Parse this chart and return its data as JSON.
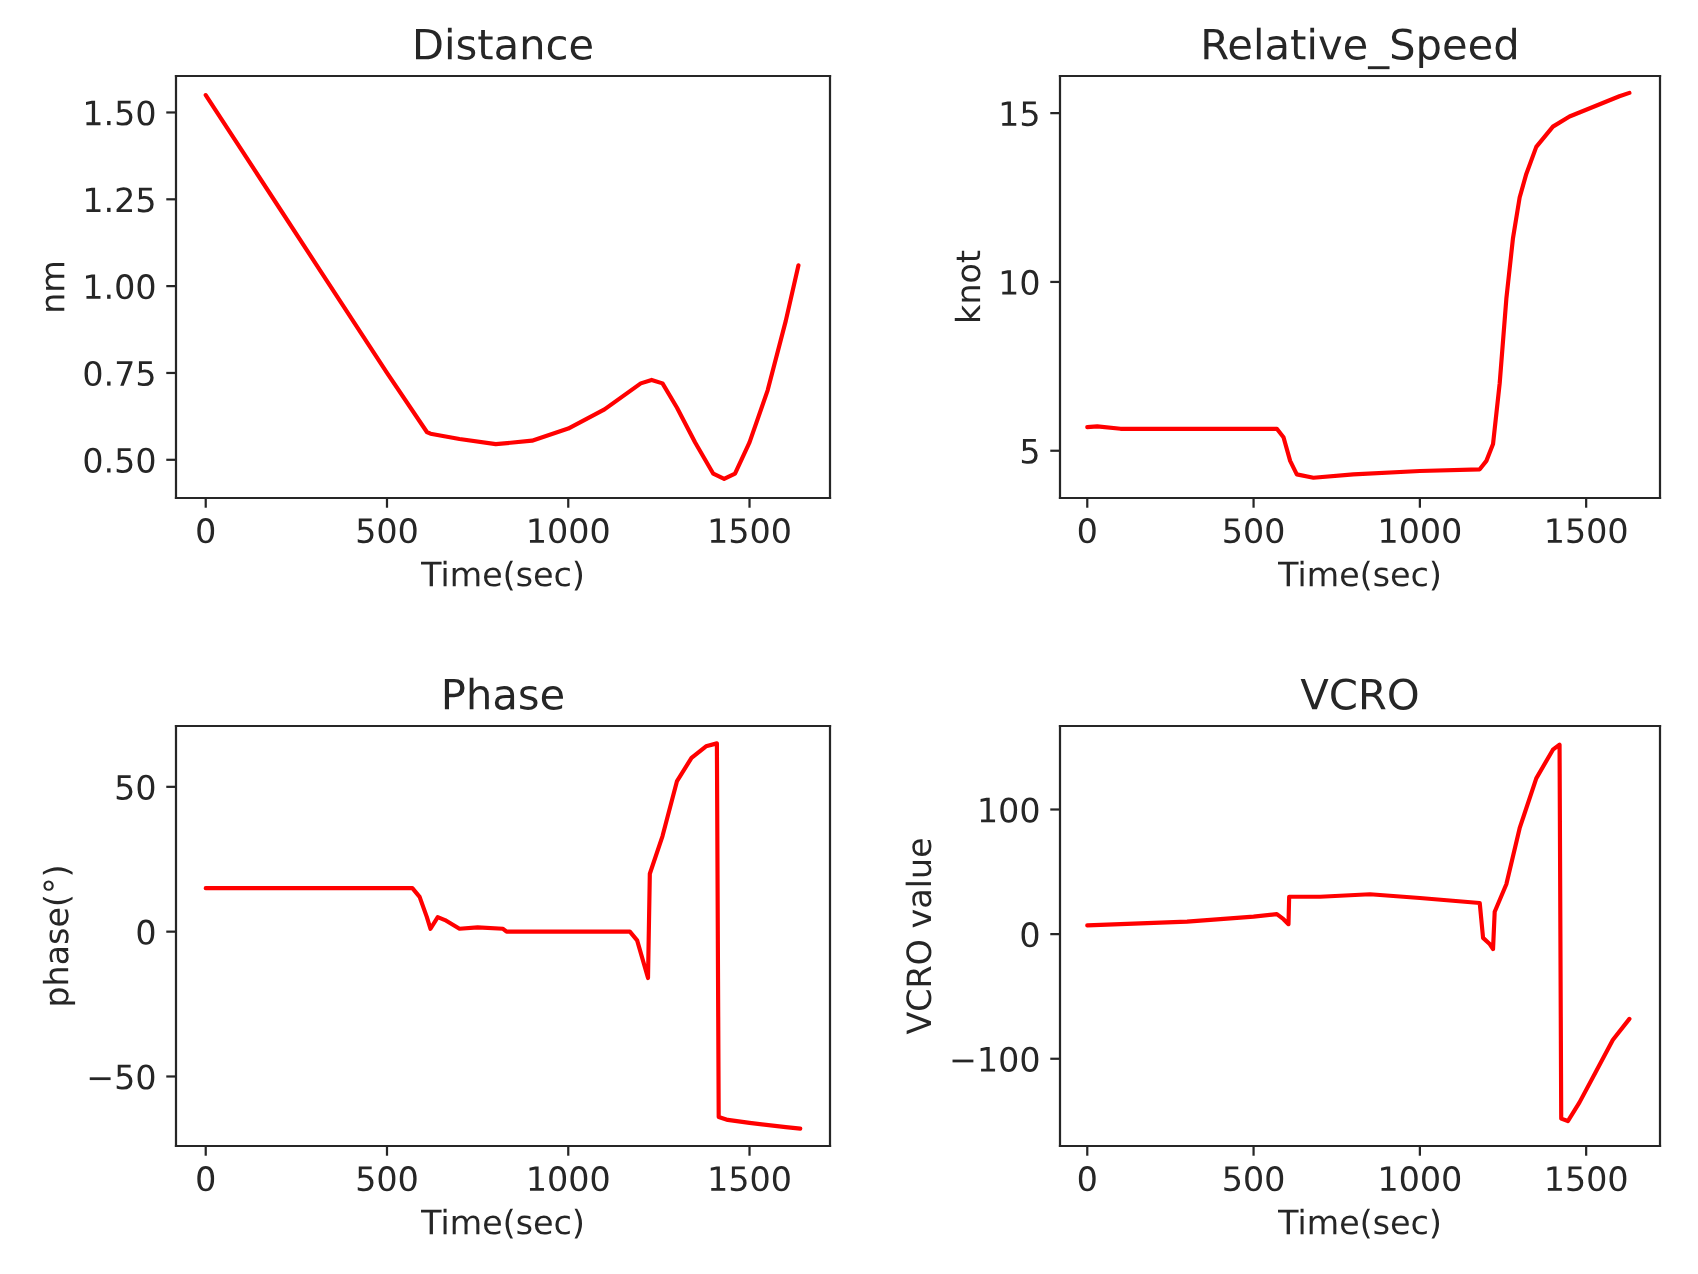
{
  "chart_data": [
    {
      "type": "line",
      "title": "Distance",
      "xlabel": "Time(sec)",
      "ylabel": "nm",
      "xlim": [
        -82,
        1722
      ],
      "xticks": [
        0,
        500,
        1000,
        1500
      ],
      "ylim": [
        0.39,
        1.605
      ],
      "yticks": [
        {
          "value": 0.5,
          "label": "0.50"
        },
        {
          "value": 0.75,
          "label": "0.75"
        },
        {
          "value": 1.0,
          "label": "1.00"
        },
        {
          "value": 1.25,
          "label": "1.25"
        },
        {
          "value": 1.5,
          "label": "1.50"
        }
      ],
      "grid": false,
      "legend": false,
      "series": [
        {
          "color": "#ff0000",
          "x": [
            0,
            100,
            200,
            300,
            400,
            500,
            610,
            620,
            700,
            800,
            900,
            1000,
            1100,
            1200,
            1230,
            1260,
            1300,
            1350,
            1400,
            1430,
            1460,
            1500,
            1550,
            1600,
            1635
          ],
          "values": [
            1.55,
            1.39,
            1.23,
            1.07,
            0.91,
            0.75,
            0.58,
            0.575,
            0.56,
            0.545,
            0.555,
            0.59,
            0.645,
            0.72,
            0.73,
            0.72,
            0.65,
            0.55,
            0.46,
            0.445,
            0.46,
            0.55,
            0.7,
            0.9,
            1.06
          ]
        }
      ]
    },
    {
      "type": "line",
      "title": "Relative_Speed",
      "xlabel": "Time(sec)",
      "ylabel": "knot",
      "xlim": [
        -82,
        1722
      ],
      "xticks": [
        0,
        500,
        1000,
        1500
      ],
      "ylim": [
        3.6,
        16.1
      ],
      "yticks": [
        5,
        10,
        15
      ],
      "grid": false,
      "legend": false,
      "series": [
        {
          "color": "#ff0000",
          "x": [
            0,
            30,
            100,
            570,
            590,
            610,
            630,
            680,
            800,
            1000,
            1180,
            1200,
            1220,
            1240,
            1260,
            1280,
            1300,
            1320,
            1350,
            1400,
            1450,
            1500,
            1550,
            1600,
            1630
          ],
          "values": [
            5.7,
            5.72,
            5.65,
            5.65,
            5.4,
            4.7,
            4.3,
            4.2,
            4.3,
            4.4,
            4.45,
            4.7,
            5.2,
            7,
            9.5,
            11.3,
            12.5,
            13.2,
            14,
            14.6,
            14.9,
            15.1,
            15.3,
            15.5,
            15.6
          ]
        }
      ]
    },
    {
      "type": "line",
      "title": "Phase",
      "xlabel": "Time(sec)",
      "ylabel": "phase(°)",
      "xlim": [
        -82,
        1722
      ],
      "xticks": [
        0,
        500,
        1000,
        1500
      ],
      "ylim": [
        -74,
        71
      ],
      "yticks": [
        {
          "value": -50,
          "label": "−50"
        },
        0,
        50
      ],
      "grid": false,
      "legend": false,
      "series": [
        {
          "color": "#ff0000",
          "x": [
            0,
            570,
            590,
            610,
            620,
            640,
            660,
            700,
            750,
            820,
            830,
            1170,
            1190,
            1220,
            1225,
            1260,
            1300,
            1340,
            1380,
            1410,
            1415,
            1440,
            1500,
            1600,
            1640
          ],
          "values": [
            15,
            15,
            12,
            5,
            1,
            5,
            4,
            1,
            1.5,
            1,
            0,
            0,
            -3,
            -16,
            20,
            33,
            52,
            60,
            64,
            65,
            -64,
            -65,
            -66,
            -67.5,
            -68
          ]
        }
      ]
    },
    {
      "type": "line",
      "title": "VCRO",
      "xlabel": "Time(sec)",
      "ylabel": "VCRO value",
      "xlim": [
        -82,
        1722
      ],
      "xticks": [
        0,
        500,
        1000,
        1500
      ],
      "ylim": [
        -170,
        167
      ],
      "yticks": [
        {
          "value": -100,
          "label": "−100"
        },
        0,
        100
      ],
      "grid": false,
      "legend": false,
      "series": [
        {
          "color": "#ff0000",
          "x": [
            0,
            300,
            500,
            570,
            590,
            605,
            607,
            700,
            850,
            1000,
            1180,
            1190,
            1210,
            1220,
            1225,
            1260,
            1300,
            1350,
            1400,
            1420,
            1425,
            1445,
            1480,
            1530,
            1580,
            1630
          ],
          "values": [
            7,
            10,
            14,
            16,
            12,
            8,
            30,
            30,
            32,
            29,
            25,
            -3,
            -8,
            -12,
            18,
            40,
            85,
            125,
            148,
            152,
            -148,
            -150,
            -135,
            -110,
            -85,
            -68
          ]
        }
      ]
    }
  ]
}
